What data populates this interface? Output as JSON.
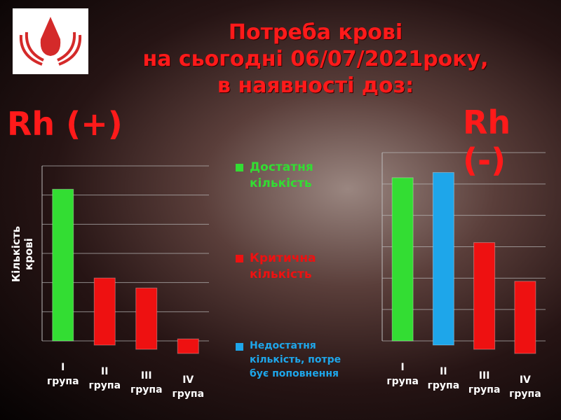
{
  "title_lines": [
    "Потреба крові",
    "на сьогодні  06/07/2021року,",
    "в наявності доз:"
  ],
  "legend": [
    {
      "label": "Достатня\nкількість",
      "color": "#33dd33"
    },
    {
      "label": "Критична\nкількість",
      "color": "#ee1111"
    },
    {
      "label": "Недостатня\nкількість, потре\nбує поповнення",
      "color": "#1ea6ea"
    }
  ],
  "chart_data": [
    {
      "type": "bar",
      "title": "Rh (+)",
      "y_label": "Кількість крові",
      "categories": [
        "I\nгрупа",
        "II\nгрупа",
        "III\nгрупа",
        "IV\nгрупа"
      ],
      "values": [
        5.2,
        2.3,
        2.1,
        0.5
      ],
      "colors": [
        "#33dd33",
        "#ee1111",
        "#ee1111",
        "#ee1111"
      ],
      "ylim": [
        0,
        6
      ],
      "grid": true
    },
    {
      "type": "bar",
      "title": "Rh (-)",
      "categories": [
        "I\nгрупа",
        "II\nгрупа",
        "III\nгрупа",
        "IV\nгрупа"
      ],
      "values": [
        5.2,
        5.5,
        3.4,
        2.3
      ],
      "colors": [
        "#33dd33",
        "#1ea6ea",
        "#ee1111",
        "#ee1111"
      ],
      "ylim": [
        0,
        6
      ],
      "grid": true
    }
  ]
}
